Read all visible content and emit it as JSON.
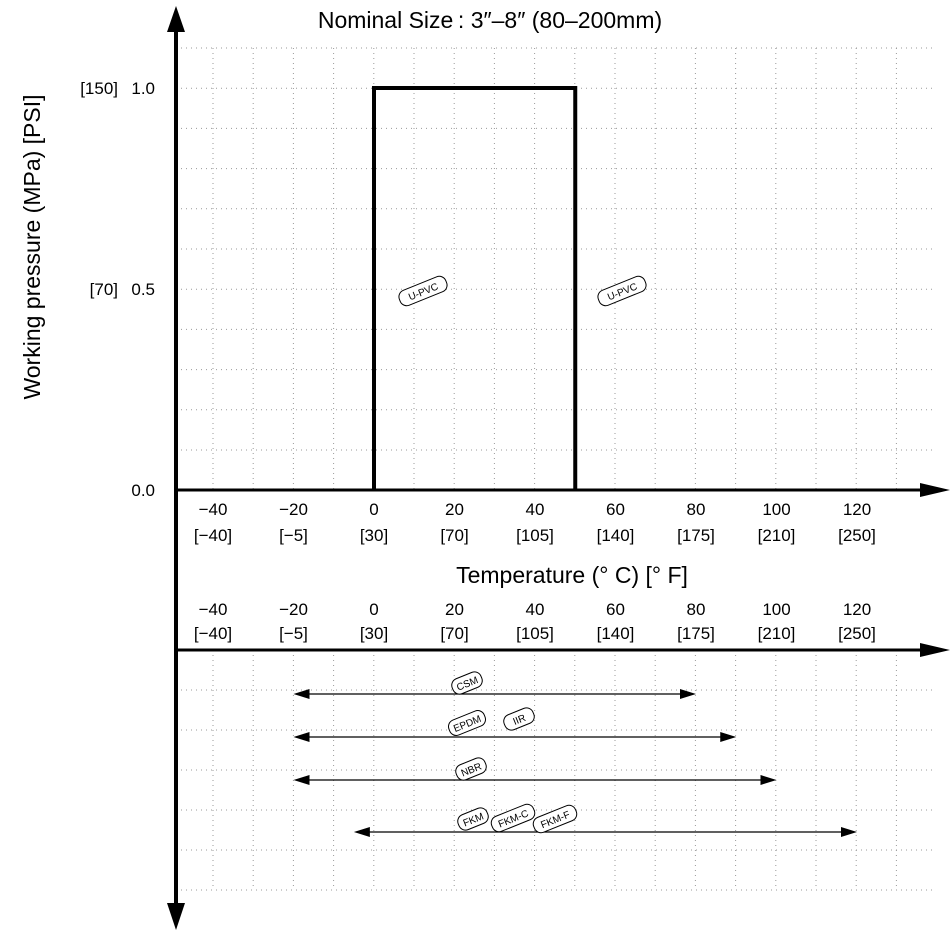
{
  "chart_data": {
    "type": "line",
    "title": "Nominal Size : 3″–8″ (80–200mm)",
    "xlabel": "Temperature (° C) [° F]",
    "ylabel": "Working pressure (MPa) [PSI]",
    "x_ticks": [
      {
        "c": "−40",
        "f": "[−40]"
      },
      {
        "c": "−20",
        "f": "[−5]"
      },
      {
        "c": "0",
        "f": "[30]"
      },
      {
        "c": "20",
        "f": "[70]"
      },
      {
        "c": "40",
        "f": "[105]"
      },
      {
        "c": "60",
        "f": "[140]"
      },
      {
        "c": "80",
        "f": "[175]"
      },
      {
        "c": "100",
        "f": "[210]"
      },
      {
        "c": "120",
        "f": "[250]"
      }
    ],
    "y_ticks": [
      {
        "mpa": "0.0",
        "psi": ""
      },
      {
        "mpa": "0.5",
        "psi": "[70]"
      },
      {
        "mpa": "1.0",
        "psi": "[150]"
      }
    ],
    "xlim": [
      -48,
      152
    ],
    "ylim": [
      0,
      1.1
    ],
    "grid": true,
    "series": [
      {
        "name": "U-PVC",
        "x": [
          0,
          0,
          50,
          50
        ],
        "y": [
          0,
          1.0,
          1.0,
          0
        ]
      }
    ],
    "curve_labels": [
      "U-PVC",
      "U-PVC"
    ],
    "ranges": [
      {
        "labels": [
          "CSM"
        ],
        "min": -20,
        "max": 80
      },
      {
        "labels": [
          "EPDM",
          "IIR"
        ],
        "min": -20,
        "max": 90
      },
      {
        "labels": [
          "NBR"
        ],
        "min": -20,
        "max": 100
      },
      {
        "labels": [
          "FKM",
          "FKM-C",
          "FKM-F"
        ],
        "min": -5,
        "max": 120
      }
    ]
  }
}
